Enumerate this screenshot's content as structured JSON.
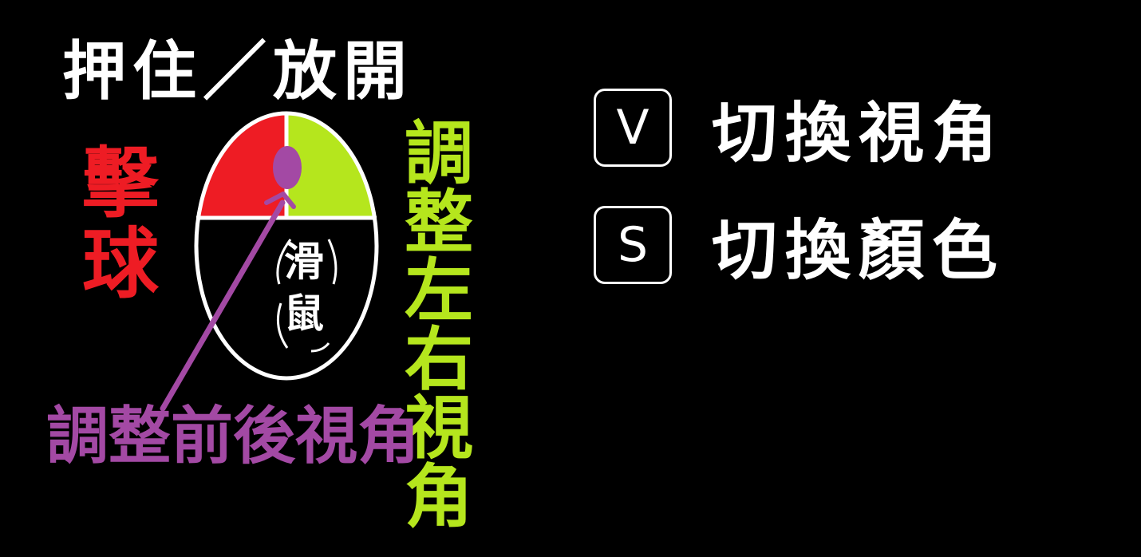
{
  "title": "押住／放開",
  "mouse_diagram": {
    "left_label": "擊球",
    "right_label": "調整左右視角",
    "wheel_label": "調整前後視角",
    "body_label": "滑鼠"
  },
  "shortcuts": [
    {
      "key": "V",
      "description": "切換視角"
    },
    {
      "key": "S",
      "description": "切換顏色"
    }
  ],
  "colors": {
    "background": "#000000",
    "text": "#ffffff",
    "left_button": "#ee1c24",
    "right_button": "#b5e61d",
    "wheel": "#a349a4"
  }
}
